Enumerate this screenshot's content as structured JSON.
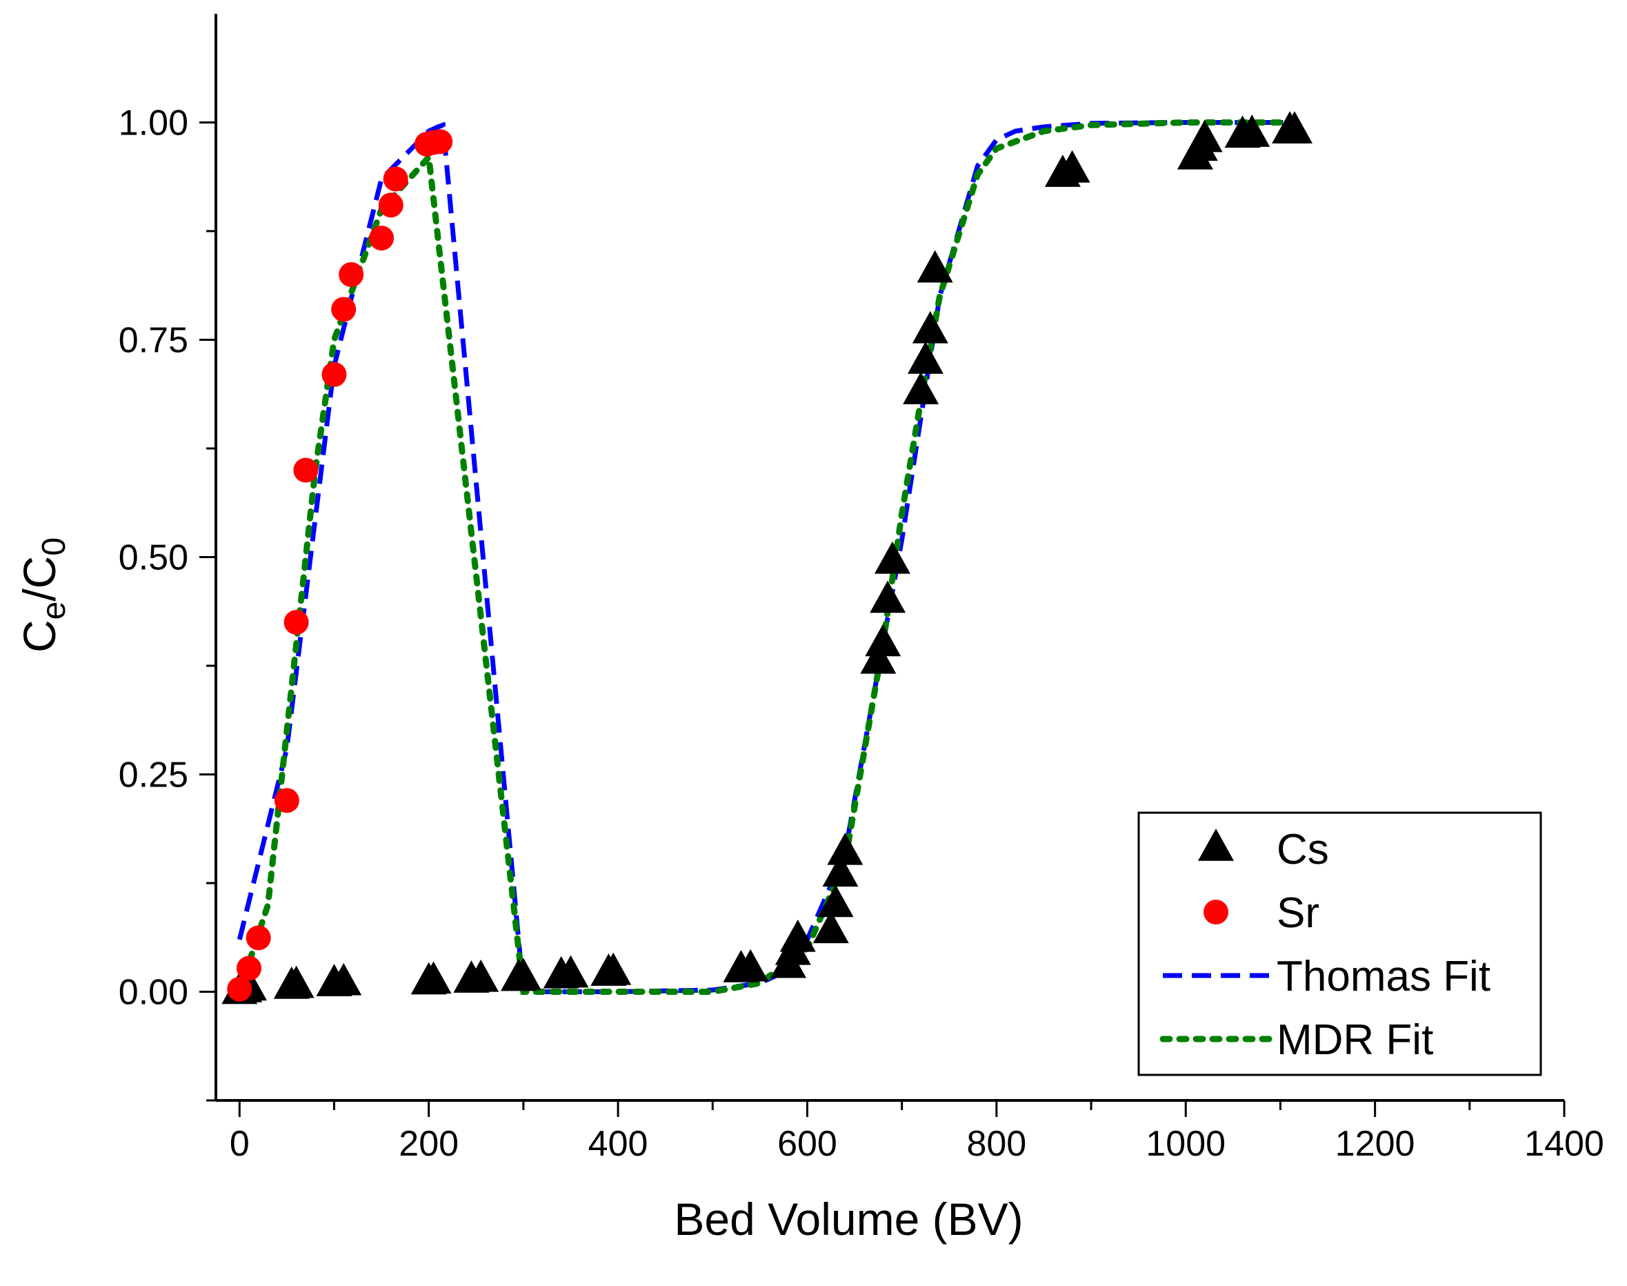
{
  "chart_data": {
    "type": "scatter",
    "xlabel": "Bed Volume (BV)",
    "ylabel": {
      "main": "C",
      "sub1": "e",
      "sep": "/C",
      "sub2": "0"
    },
    "xlim": [
      -25,
      1400
    ],
    "ylim": [
      -0.125,
      1.125
    ],
    "x_ticks": [
      0,
      200,
      400,
      600,
      800,
      1000,
      1200,
      1400
    ],
    "x_tick_labels": [
      "0",
      "200",
      "400",
      "600",
      "800",
      "1000",
      "1200",
      "1400"
    ],
    "y_ticks": [
      0,
      0.25,
      0.5,
      0.75,
      1.0
    ],
    "y_tick_labels": [
      "0.00",
      "0.25",
      "0.50",
      "0.75",
      "1.00"
    ],
    "legend_position": "bottom-right",
    "series": [
      {
        "name": "Cs",
        "kind": "scatter",
        "marker": "triangle",
        "color": "#000000",
        "x": [
          0,
          5,
          10,
          55,
          60,
          100,
          110,
          200,
          205,
          245,
          255,
          295,
          300,
          340,
          350,
          390,
          395,
          530,
          540,
          580,
          585,
          590,
          625,
          630,
          635,
          640,
          675,
          680,
          685,
          690,
          720,
          725,
          730,
          735,
          870,
          880,
          1010,
          1015,
          1020,
          1060,
          1070,
          1110,
          1115
        ],
        "y": [
          0.0,
          0.002,
          0.004,
          0.006,
          0.007,
          0.009,
          0.01,
          0.011,
          0.012,
          0.013,
          0.014,
          0.015,
          0.016,
          0.018,
          0.019,
          0.021,
          0.022,
          0.025,
          0.026,
          0.03,
          0.045,
          0.06,
          0.07,
          0.1,
          0.135,
          0.16,
          0.38,
          0.4,
          0.45,
          0.495,
          0.69,
          0.725,
          0.76,
          0.83,
          0.94,
          0.945,
          0.96,
          0.97,
          0.98,
          0.985,
          0.986,
          0.99,
          0.99
        ]
      },
      {
        "name": "Sr",
        "kind": "scatter",
        "marker": "circle",
        "color": "#ff0000",
        "x": [
          0,
          10,
          20,
          50,
          60,
          70,
          100,
          110,
          118,
          150,
          160,
          165,
          198,
          205,
          212
        ],
        "y": [
          0.003,
          0.027,
          0.062,
          0.22,
          0.425,
          0.6,
          0.71,
          0.785,
          0.825,
          0.867,
          0.905,
          0.935,
          0.975,
          0.977,
          0.978
        ]
      },
      {
        "name": "Thomas Fit",
        "kind": "line",
        "style": "dashed",
        "color": "#0000ff",
        "x": [
          0,
          50,
          100,
          150,
          200,
          210,
          215,
          300,
          400,
          500,
          550,
          580,
          600,
          640,
          680,
          700,
          720,
          740,
          780,
          800,
          820,
          850,
          900,
          1000,
          1100,
          1120
        ],
        "y": [
          0.06,
          0.28,
          0.72,
          0.935,
          0.99,
          0.995,
          0.997,
          0.0,
          0.0,
          0.002,
          0.01,
          0.025,
          0.06,
          0.16,
          0.4,
          0.52,
          0.66,
          0.8,
          0.95,
          0.98,
          0.99,
          0.995,
          0.999,
          1.0,
          1.0,
          1.0
        ]
      },
      {
        "name": "MDR Fit",
        "kind": "line",
        "style": "dotted",
        "color": "#008000",
        "x": [
          0,
          30,
          50,
          80,
          100,
          150,
          200,
          300,
          400,
          500,
          550,
          600,
          640,
          680,
          700,
          720,
          740,
          780,
          800,
          850,
          900,
          1000,
          1100,
          1120
        ],
        "y": [
          0.0,
          0.1,
          0.3,
          0.6,
          0.75,
          0.9,
          0.96,
          0.0,
          0.0,
          0.0,
          0.01,
          0.05,
          0.15,
          0.4,
          0.55,
          0.68,
          0.8,
          0.94,
          0.97,
          0.99,
          0.997,
          1.0,
          1.0,
          1.0
        ]
      }
    ]
  }
}
